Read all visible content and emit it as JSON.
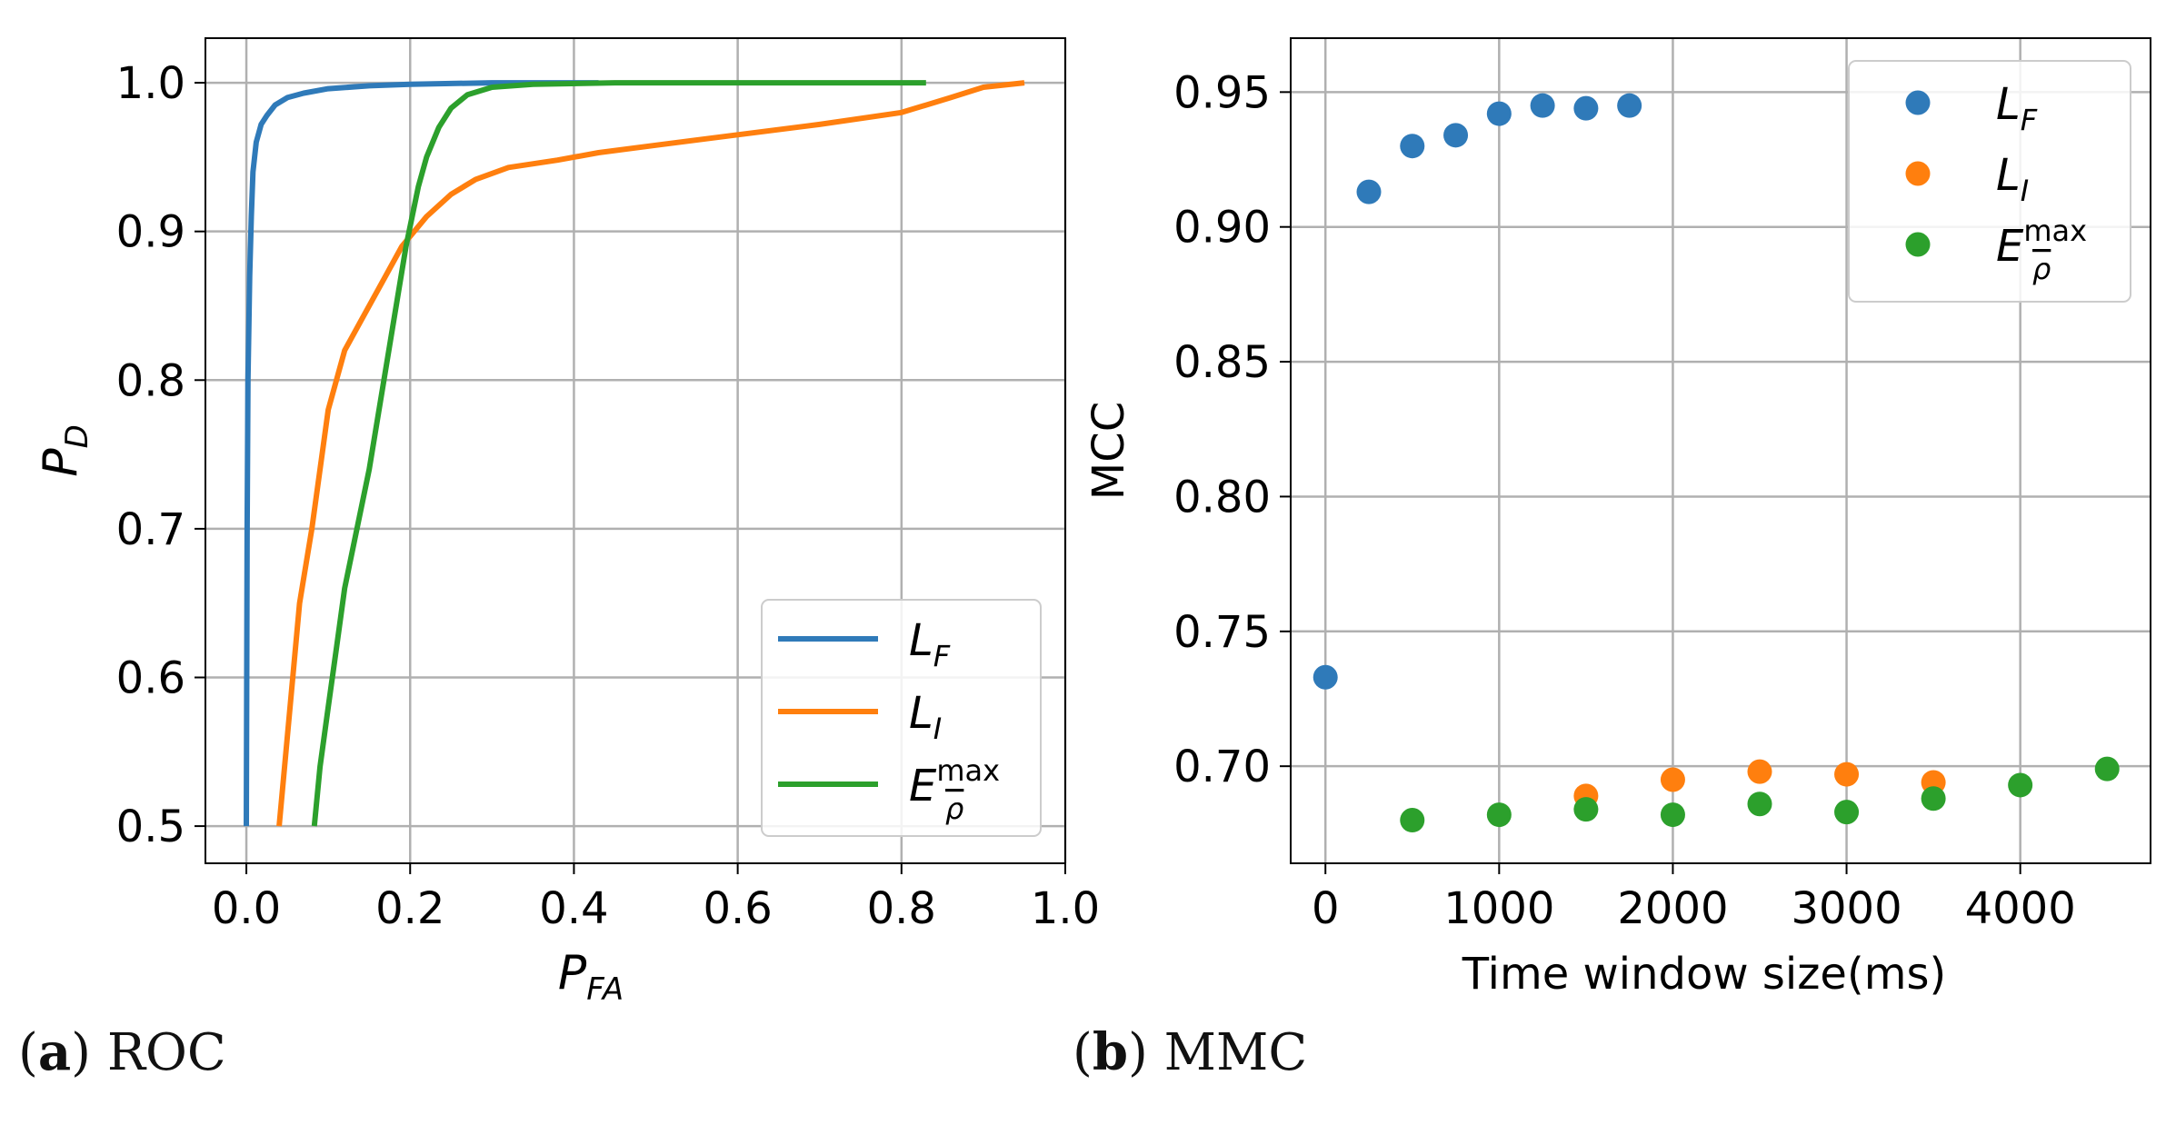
{
  "colors": {
    "blue": "#2f7ab9",
    "orange": "#ff7f0e",
    "green": "#2ca02c",
    "grid": "#b0b0b0",
    "axis": "#000000"
  },
  "captions": [
    {
      "letter": "a",
      "text": " ROC"
    },
    {
      "letter": "b",
      "text": " MMC"
    }
  ],
  "chart_data": [
    {
      "type": "line",
      "title": "ROC",
      "xlabel": "P_FA",
      "ylabel": "P_D",
      "xlim": [
        -0.05,
        1.0
      ],
      "ylim": [
        0.475,
        1.03
      ],
      "xticks": [
        0.0,
        0.2,
        0.4,
        0.6,
        0.8,
        1.0
      ],
      "xtick_labels": [
        "0.0",
        "0.2",
        "0.4",
        "0.6",
        "0.8",
        "1.0"
      ],
      "yticks": [
        0.5,
        0.6,
        0.7,
        0.8,
        0.9,
        1.0
      ],
      "ytick_labels": [
        "0.5",
        "0.6",
        "0.7",
        "0.8",
        "0.9",
        "1.0"
      ],
      "grid": true,
      "legend_position": "lower-right",
      "series": [
        {
          "name": "L_F",
          "base": "L",
          "sub": "F",
          "color": "#2f7ab9",
          "x": [
            0.0,
            0.001,
            0.002,
            0.004,
            0.006,
            0.008,
            0.012,
            0.018,
            0.025,
            0.035,
            0.05,
            0.07,
            0.1,
            0.15,
            0.2,
            0.3,
            0.43
          ],
          "y": [
            0.5,
            0.7,
            0.8,
            0.87,
            0.91,
            0.94,
            0.96,
            0.972,
            0.978,
            0.985,
            0.99,
            0.993,
            0.996,
            0.998,
            0.999,
            1.0,
            1.0
          ]
        },
        {
          "name": "L_I",
          "base": "L",
          "sub": "I",
          "color": "#ff7f0e",
          "x": [
            0.04,
            0.05,
            0.06,
            0.065,
            0.08,
            0.1,
            0.12,
            0.14,
            0.17,
            0.19,
            0.22,
            0.25,
            0.28,
            0.32,
            0.38,
            0.43,
            0.5,
            0.6,
            0.7,
            0.8,
            0.86,
            0.9,
            0.95
          ],
          "y": [
            0.5,
            0.56,
            0.62,
            0.65,
            0.7,
            0.78,
            0.82,
            0.84,
            0.87,
            0.89,
            0.91,
            0.925,
            0.935,
            0.943,
            0.948,
            0.953,
            0.958,
            0.965,
            0.972,
            0.98,
            0.99,
            0.997,
            1.0
          ]
        },
        {
          "name": "E_rho_bar^max",
          "base": "E",
          "sub": "ρ",
          "sup": "max",
          "color": "#2ca02c",
          "x": [
            0.083,
            0.09,
            0.1,
            0.11,
            0.12,
            0.135,
            0.15,
            0.165,
            0.18,
            0.195,
            0.21,
            0.22,
            0.235,
            0.25,
            0.27,
            0.3,
            0.35,
            0.45,
            0.6,
            0.83
          ],
          "y": [
            0.5,
            0.54,
            0.58,
            0.62,
            0.66,
            0.7,
            0.74,
            0.79,
            0.84,
            0.89,
            0.93,
            0.95,
            0.97,
            0.983,
            0.992,
            0.997,
            0.999,
            1.0,
            1.0,
            1.0
          ]
        }
      ]
    },
    {
      "type": "scatter",
      "title": "MMC",
      "xlabel": "Time window size(ms)",
      "ylabel": "MCC",
      "xlim": [
        -200,
        4750
      ],
      "ylim": [
        0.664,
        0.97
      ],
      "xticks": [
        0,
        1000,
        2000,
        3000,
        4000
      ],
      "xtick_labels": [
        "0",
        "1000",
        "2000",
        "3000",
        "4000"
      ],
      "yticks": [
        0.7,
        0.75,
        0.8,
        0.85,
        0.9,
        0.95
      ],
      "ytick_labels": [
        "0.70",
        "0.75",
        "0.80",
        "0.85",
        "0.90",
        "0.95"
      ],
      "grid": true,
      "legend_position": "top-right",
      "series": [
        {
          "name": "L_F",
          "base": "L",
          "sub": "F",
          "color": "#2f7ab9",
          "x": [
            0,
            250,
            500,
            750,
            1000,
            1250,
            1500,
            1750
          ],
          "y": [
            0.733,
            0.913,
            0.93,
            0.934,
            0.942,
            0.945,
            0.944,
            0.945
          ]
        },
        {
          "name": "L_I",
          "base": "L",
          "sub": "I",
          "color": "#ff7f0e",
          "x": [
            1500,
            2000,
            2500,
            3000,
            3500
          ],
          "y": [
            0.689,
            0.695,
            0.698,
            0.697,
            0.694
          ]
        },
        {
          "name": "E_rho_bar^max",
          "base": "E",
          "sub": "ρ",
          "sup": "max",
          "color": "#2ca02c",
          "x": [
            500,
            1000,
            1500,
            2000,
            2500,
            3000,
            3500,
            4000,
            4500
          ],
          "y": [
            0.68,
            0.682,
            0.684,
            0.682,
            0.686,
            0.683,
            0.688,
            0.693,
            0.699
          ]
        }
      ]
    }
  ]
}
